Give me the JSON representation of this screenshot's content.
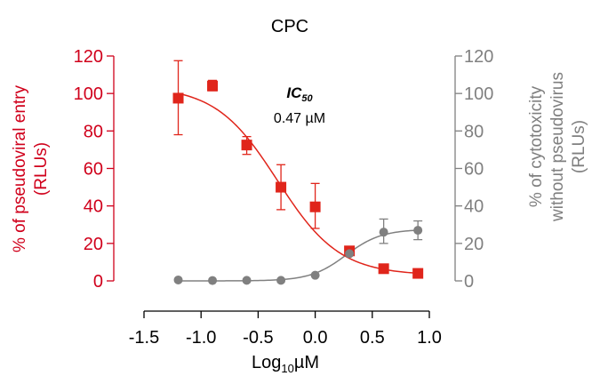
{
  "chart_data": {
    "type": "scatter",
    "title": "CPC",
    "xlabel": {
      "base": "Log",
      "sub": "10",
      "unit": "µM"
    },
    "ylabel_left": [
      "% of pseudoviral entry",
      "(RLUs)"
    ],
    "ylabel_right": [
      "% of cytotoxicity",
      "without pseudovirus",
      "(RLUs)"
    ],
    "xlim": [
      -1.5,
      1.0
    ],
    "xticks": [
      -1.5,
      -1.0,
      -0.5,
      0.0,
      0.5,
      1.0
    ],
    "xtick_labels": [
      "-1.5",
      "-1.0",
      "-0.5",
      "0.0",
      "0.5",
      "1.0"
    ],
    "ylim": [
      0,
      120
    ],
    "yticks": [
      0,
      20,
      40,
      60,
      80,
      100,
      120
    ],
    "ytick_labels": [
      "0",
      "20",
      "40",
      "60",
      "80",
      "100",
      "120"
    ],
    "annotation": {
      "label": "IC",
      "label_sub": "50",
      "value": "0.47 µM"
    },
    "colors": {
      "entry": "#e0251b",
      "entry_axis": "#d0001b",
      "cytotoxicity": "#808080"
    },
    "series": [
      {
        "key": "entry",
        "marker": "square",
        "x": [
          -1.2,
          -0.9,
          -0.6,
          -0.3,
          0.0,
          0.3,
          0.6,
          0.9
        ],
        "y": [
          97.5,
          104,
          72.5,
          50,
          39.5,
          16,
          6.5,
          4
        ],
        "err_low": [
          78,
          101.5,
          67.5,
          38,
          28,
          16,
          6.5,
          4
        ],
        "err_high": [
          117.5,
          107,
          77,
          62,
          52,
          16,
          6.5,
          4
        ],
        "fit": {
          "top": 104,
          "bottom": 3,
          "logIC50": -0.33,
          "hill": 1.6
        }
      },
      {
        "key": "cytotoxicity",
        "marker": "circle",
        "x": [
          -1.2,
          -0.9,
          -0.6,
          -0.3,
          0.0,
          0.3,
          0.6,
          0.9
        ],
        "y": [
          0.5,
          0.2,
          0.3,
          0.3,
          3,
          14.5,
          26,
          27
        ],
        "err_low": [
          0.5,
          0.2,
          0.3,
          0.3,
          3,
          14.5,
          20,
          22
        ],
        "err_high": [
          0.5,
          0.2,
          0.3,
          0.3,
          3,
          14.5,
          33,
          32
        ],
        "fit": {
          "top": 27.5,
          "bottom": 0,
          "logIC50": 0.27,
          "hill": 2.8
        }
      }
    ]
  }
}
